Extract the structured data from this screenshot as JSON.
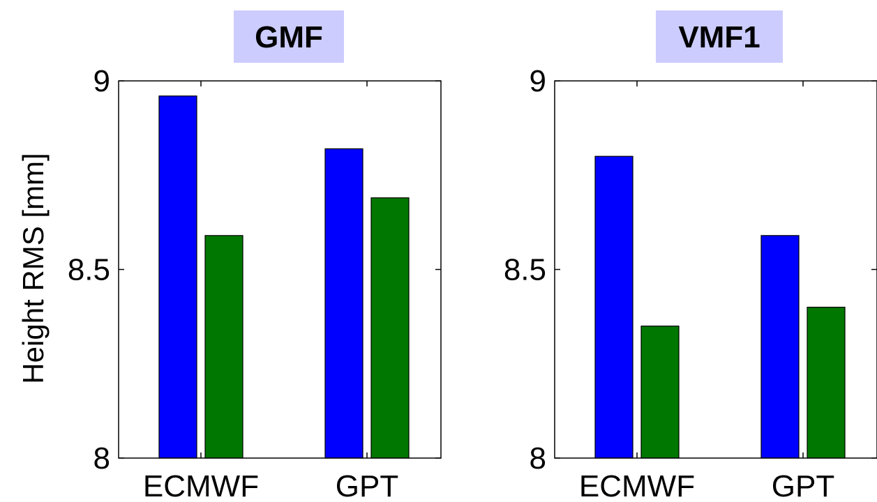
{
  "ylabel": "Height RMS [mm]",
  "chart_data": [
    {
      "type": "bar",
      "title": "GMF",
      "categories": [
        "ECMWF",
        "GPT"
      ],
      "ylim": [
        8,
        9
      ],
      "yticks": [
        "8",
        "8.5",
        "9"
      ],
      "ytick_values": [
        8,
        8.5,
        9
      ],
      "series": [
        {
          "color": "#0000ff",
          "values": [
            8.96,
            8.82
          ]
        },
        {
          "color": "#007700",
          "values": [
            8.59,
            8.69
          ]
        }
      ]
    },
    {
      "type": "bar",
      "title": "VMF1",
      "categories": [
        "ECMWF",
        "GPT"
      ],
      "ylim": [
        8,
        9
      ],
      "yticks": [
        "8",
        "8.5",
        "9"
      ],
      "ytick_values": [
        8,
        8.5,
        9
      ],
      "series": [
        {
          "color": "#0000ff",
          "values": [
            8.8,
            8.59
          ]
        },
        {
          "color": "#007700",
          "values": [
            8.35,
            8.4
          ]
        }
      ]
    }
  ]
}
